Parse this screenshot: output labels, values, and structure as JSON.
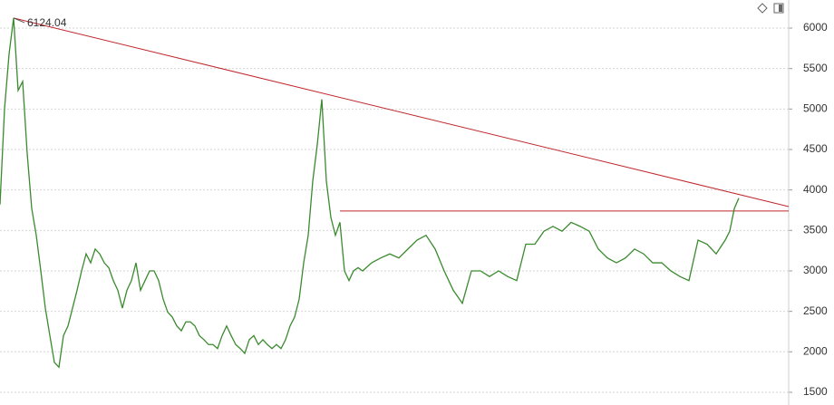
{
  "chart_data": {
    "type": "line",
    "x": [
      0,
      5,
      10,
      15,
      20,
      25,
      30,
      35,
      40,
      45,
      50,
      55,
      60,
      65,
      70,
      75,
      80,
      85,
      90,
      95,
      100,
      105,
      110,
      115,
      120,
      125,
      130,
      135,
      140,
      145,
      150,
      155,
      160,
      165,
      170,
      175,
      180,
      185,
      190,
      195,
      200,
      205,
      210,
      215,
      220,
      225,
      230,
      235,
      240,
      245,
      250,
      255,
      260,
      265,
      270,
      275,
      280,
      285,
      290,
      295,
      300,
      305,
      310,
      315,
      320,
      325,
      330,
      335,
      340,
      345,
      350,
      355,
      360,
      365,
      370,
      375,
      380,
      385,
      390,
      395,
      400,
      410,
      420,
      430,
      440,
      450,
      460,
      470,
      480,
      490,
      500,
      510,
      520,
      530,
      540,
      550,
      560,
      570,
      580,
      590,
      600,
      610,
      620,
      630,
      640,
      650,
      660,
      670,
      680,
      690,
      700,
      710,
      720,
      730,
      740,
      750,
      760,
      770,
      780,
      790,
      800,
      805,
      810,
      815
    ],
    "series": [
      {
        "color": "#3a8a2e",
        "values": [
          3820,
          5000,
          5680,
          6124.04,
          5230,
          5340,
          4450,
          3770,
          3440,
          3000,
          2540,
          2200,
          1870,
          1810,
          2200,
          2320,
          2540,
          2760,
          3000,
          3210,
          3100,
          3270,
          3210,
          3100,
          3040,
          2880,
          2760,
          2540,
          2760,
          2880,
          3100,
          2760,
          2880,
          3000,
          3000,
          2880,
          2650,
          2490,
          2430,
          2320,
          2260,
          2370,
          2370,
          2320,
          2200,
          2150,
          2090,
          2090,
          2040,
          2200,
          2320,
          2200,
          2090,
          2040,
          1980,
          2150,
          2200,
          2090,
          2150,
          2090,
          2040,
          2090,
          2040,
          2150,
          2320,
          2430,
          2650,
          3100,
          3440,
          4110,
          4560,
          5120,
          4110,
          3660,
          3440,
          3600,
          3000,
          2880,
          3000,
          3040,
          3000,
          3100,
          3160,
          3210,
          3160,
          3270,
          3380,
          3440,
          3270,
          3000,
          2760,
          2600,
          3000,
          3000,
          2930,
          3000,
          2930,
          2880,
          3330,
          3330,
          3490,
          3550,
          3490,
          3600,
          3550,
          3490,
          3270,
          3160,
          3100,
          3160,
          3270,
          3210,
          3100,
          3100,
          3000,
          2930,
          2880,
          3380,
          3330,
          3210,
          3380,
          3490,
          3770,
          3900
        ]
      }
    ],
    "lines": [
      {
        "color": "#c0282d",
        "x": [
          15,
          870
        ],
        "y": [
          6124.04,
          3795
        ]
      },
      {
        "color": "#c0282d",
        "x": [
          375,
          870
        ],
        "y": [
          3740,
          3740
        ]
      }
    ],
    "annotations": [
      {
        "text": "6124.04",
        "x": 15,
        "y": 6124.04
      }
    ],
    "xlim": [
      0,
      870
    ],
    "ylim": [
      1343,
      6347
    ],
    "yticks": [
      1500,
      2000,
      2500,
      3000,
      3500,
      4000,
      4500,
      5000,
      5500,
      6000
    ],
    "grid": true
  }
}
